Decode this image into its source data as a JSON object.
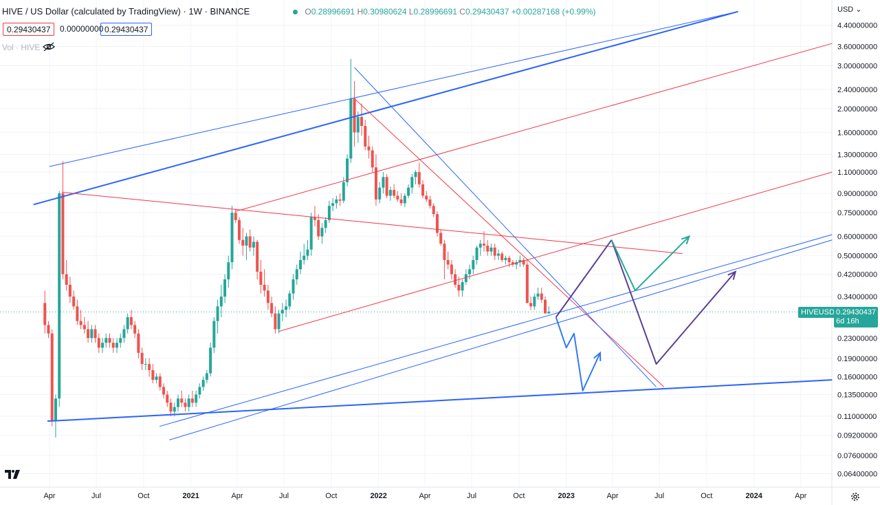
{
  "header": {
    "title": "HIVE / US Dollar (calculated by TradingView) · 1W · BINANCE",
    "ohlc": {
      "o_label": "O",
      "o": "0.28996691",
      "h_label": "H",
      "h": "0.30980624",
      "l_label": "L",
      "l": "0.28996691",
      "c_label": "C",
      "c": "0.29430437",
      "change": "+0.00287168 (+0.99%)"
    },
    "chips": [
      "0.29430437",
      "0.00000000",
      "0.29430437"
    ],
    "volume_label": "Vol · HIVE",
    "currency": "USD"
  },
  "last_price": {
    "symbol": "HIVEUSD",
    "price": "0.29430437",
    "countdown": "6d 16h"
  },
  "colors": {
    "up": "#26a69a",
    "down": "#ef5350",
    "blue_line": "#2962ff",
    "red_line": "#f23645",
    "purple": "#5b3e96",
    "teal": "#22ab94",
    "arrow_blue": "#3179f5"
  },
  "icons": [
    "eye-off-icon",
    "chevron-down-icon",
    "tradingview-logo-icon",
    "gear-icon"
  ],
  "chart_data": {
    "type": "candlestick",
    "title": "HIVE / US Dollar (calculated by TradingView) · 1W · BINANCE",
    "y_scale": "log",
    "ylim": [
      0.055,
      5.0
    ],
    "y_ticks": [
      "4.40000000",
      "3.60000000",
      "3.00000000",
      "2.40000000",
      "2.00000000",
      "1.60000000",
      "1.30000000",
      "1.10000000",
      "0.90000000",
      "0.75000000",
      "0.60000000",
      "0.50000000",
      "0.42000000",
      "0.34000000",
      "0.29430437",
      "0.23000000",
      "0.19000000",
      "0.16000000",
      "0.13500000",
      "0.11000000",
      "0.09200000",
      "0.07600000",
      "0.06400000"
    ],
    "x_ticks": [
      "Apr",
      "Jul",
      "Oct",
      "2021",
      "Apr",
      "Jul",
      "Oct",
      "2022",
      "Apr",
      "Jul",
      "Oct",
      "2023",
      "Apr",
      "Jul",
      "Oct",
      "2024",
      "Apr"
    ],
    "x_range": [
      "2020-03-15",
      "2024-05-15"
    ],
    "grid": true,
    "candles": [
      [
        "2020-03-23",
        0.32,
        0.36,
        0.24,
        0.26
      ],
      [
        "2020-03-30",
        0.26,
        0.27,
        0.23,
        0.24
      ],
      [
        "2020-04-06",
        0.24,
        0.25,
        0.1,
        0.105
      ],
      [
        "2020-04-13",
        0.105,
        0.135,
        0.09,
        0.13
      ],
      [
        "2020-04-20",
        0.13,
        0.92,
        0.12,
        0.9
      ],
      [
        "2020-04-27",
        0.9,
        1.22,
        0.4,
        0.42
      ],
      [
        "2020-05-04",
        0.42,
        0.48,
        0.36,
        0.38
      ],
      [
        "2020-05-11",
        0.38,
        0.41,
        0.32,
        0.34
      ],
      [
        "2020-05-18",
        0.34,
        0.36,
        0.3,
        0.31
      ],
      [
        "2020-05-25",
        0.31,
        0.33,
        0.26,
        0.27
      ],
      [
        "2020-06-01",
        0.27,
        0.3,
        0.25,
        0.26
      ],
      [
        "2020-06-08",
        0.26,
        0.28,
        0.24,
        0.25
      ],
      [
        "2020-06-15",
        0.25,
        0.27,
        0.22,
        0.23
      ],
      [
        "2020-06-22",
        0.23,
        0.26,
        0.22,
        0.25
      ],
      [
        "2020-06-29",
        0.25,
        0.26,
        0.22,
        0.23
      ],
      [
        "2020-07-06",
        0.23,
        0.24,
        0.2,
        0.21
      ],
      [
        "2020-07-13",
        0.21,
        0.23,
        0.2,
        0.22
      ],
      [
        "2020-07-20",
        0.22,
        0.24,
        0.21,
        0.23
      ],
      [
        "2020-07-27",
        0.23,
        0.24,
        0.21,
        0.22
      ],
      [
        "2020-08-03",
        0.22,
        0.23,
        0.2,
        0.21
      ],
      [
        "2020-08-10",
        0.21,
        0.23,
        0.2,
        0.22
      ],
      [
        "2020-08-17",
        0.22,
        0.24,
        0.21,
        0.23
      ],
      [
        "2020-08-24",
        0.23,
        0.26,
        0.22,
        0.25
      ],
      [
        "2020-08-31",
        0.25,
        0.29,
        0.24,
        0.28
      ],
      [
        "2020-09-07",
        0.28,
        0.3,
        0.25,
        0.26
      ],
      [
        "2020-09-14",
        0.26,
        0.27,
        0.23,
        0.24
      ],
      [
        "2020-09-21",
        0.24,
        0.25,
        0.19,
        0.2
      ],
      [
        "2020-09-28",
        0.2,
        0.21,
        0.17,
        0.18
      ],
      [
        "2020-10-05",
        0.18,
        0.19,
        0.17,
        0.18
      ],
      [
        "2020-10-12",
        0.18,
        0.19,
        0.16,
        0.17
      ],
      [
        "2020-10-19",
        0.17,
        0.18,
        0.15,
        0.155
      ],
      [
        "2020-10-26",
        0.155,
        0.165,
        0.15,
        0.16
      ],
      [
        "2020-11-02",
        0.16,
        0.165,
        0.14,
        0.145
      ],
      [
        "2020-11-09",
        0.145,
        0.15,
        0.13,
        0.135
      ],
      [
        "2020-11-16",
        0.135,
        0.14,
        0.12,
        0.125
      ],
      [
        "2020-11-23",
        0.125,
        0.13,
        0.11,
        0.115
      ],
      [
        "2020-11-30",
        0.115,
        0.125,
        0.11,
        0.12
      ],
      [
        "2020-12-07",
        0.12,
        0.135,
        0.115,
        0.13
      ],
      [
        "2020-12-14",
        0.13,
        0.14,
        0.12,
        0.125
      ],
      [
        "2020-12-21",
        0.125,
        0.13,
        0.115,
        0.12
      ],
      [
        "2020-12-28",
        0.12,
        0.135,
        0.115,
        0.13
      ],
      [
        "2021-01-04",
        0.13,
        0.14,
        0.12,
        0.125
      ],
      [
        "2021-01-11",
        0.125,
        0.14,
        0.12,
        0.135
      ],
      [
        "2021-01-18",
        0.135,
        0.15,
        0.13,
        0.145
      ],
      [
        "2021-01-25",
        0.145,
        0.16,
        0.14,
        0.155
      ],
      [
        "2021-02-01",
        0.155,
        0.17,
        0.15,
        0.165
      ],
      [
        "2021-02-08",
        0.165,
        0.22,
        0.16,
        0.21
      ],
      [
        "2021-02-15",
        0.21,
        0.28,
        0.2,
        0.27
      ],
      [
        "2021-02-22",
        0.27,
        0.33,
        0.24,
        0.31
      ],
      [
        "2021-03-01",
        0.31,
        0.38,
        0.28,
        0.34
      ],
      [
        "2021-03-08",
        0.34,
        0.42,
        0.32,
        0.4
      ],
      [
        "2021-03-15",
        0.4,
        0.5,
        0.37,
        0.47
      ],
      [
        "2021-03-22",
        0.47,
        0.8,
        0.44,
        0.75
      ],
      [
        "2021-03-29",
        0.75,
        0.78,
        0.68,
        0.7
      ],
      [
        "2021-04-05",
        0.7,
        0.72,
        0.56,
        0.58
      ],
      [
        "2021-04-12",
        0.58,
        0.65,
        0.5,
        0.55
      ],
      [
        "2021-04-19",
        0.55,
        0.62,
        0.48,
        0.6
      ],
      [
        "2021-04-26",
        0.6,
        0.64,
        0.52,
        0.54
      ],
      [
        "2021-05-03",
        0.54,
        0.6,
        0.5,
        0.57
      ],
      [
        "2021-05-10",
        0.57,
        0.58,
        0.4,
        0.43
      ],
      [
        "2021-05-17",
        0.43,
        0.48,
        0.35,
        0.38
      ],
      [
        "2021-05-24",
        0.38,
        0.44,
        0.34,
        0.36
      ],
      [
        "2021-05-31",
        0.36,
        0.38,
        0.3,
        0.32
      ],
      [
        "2021-06-07",
        0.32,
        0.34,
        0.28,
        0.29
      ],
      [
        "2021-06-14",
        0.29,
        0.31,
        0.24,
        0.25
      ],
      [
        "2021-06-21",
        0.25,
        0.3,
        0.24,
        0.29
      ],
      [
        "2021-06-28",
        0.29,
        0.32,
        0.27,
        0.3
      ],
      [
        "2021-07-05",
        0.3,
        0.33,
        0.28,
        0.31
      ],
      [
        "2021-07-12",
        0.31,
        0.36,
        0.3,
        0.35
      ],
      [
        "2021-07-19",
        0.35,
        0.42,
        0.33,
        0.4
      ],
      [
        "2021-07-26",
        0.4,
        0.46,
        0.38,
        0.44
      ],
      [
        "2021-08-02",
        0.44,
        0.52,
        0.42,
        0.48
      ],
      [
        "2021-08-09",
        0.48,
        0.56,
        0.46,
        0.5
      ],
      [
        "2021-08-16",
        0.5,
        0.58,
        0.48,
        0.53
      ],
      [
        "2021-08-23",
        0.53,
        0.75,
        0.5,
        0.72
      ],
      [
        "2021-08-30",
        0.72,
        0.8,
        0.66,
        0.7
      ],
      [
        "2021-09-06",
        0.7,
        0.74,
        0.58,
        0.6
      ],
      [
        "2021-09-13",
        0.6,
        0.68,
        0.56,
        0.65
      ],
      [
        "2021-09-20",
        0.65,
        0.72,
        0.62,
        0.7
      ],
      [
        "2021-09-27",
        0.7,
        0.84,
        0.68,
        0.8
      ],
      [
        "2021-10-04",
        0.8,
        0.86,
        0.76,
        0.82
      ],
      [
        "2021-10-11",
        0.82,
        0.88,
        0.78,
        0.85
      ],
      [
        "2021-10-18",
        0.85,
        0.9,
        0.8,
        0.84
      ],
      [
        "2021-10-25",
        0.84,
        1.05,
        0.82,
        1.0
      ],
      [
        "2021-11-01",
        1.0,
        1.3,
        0.96,
        1.25
      ],
      [
        "2021-11-08",
        1.25,
        3.2,
        1.2,
        2.2
      ],
      [
        "2021-11-15",
        2.2,
        2.6,
        1.4,
        1.6
      ],
      [
        "2021-11-22",
        1.6,
        1.95,
        1.45,
        1.85
      ],
      [
        "2021-11-29",
        1.85,
        2.1,
        1.55,
        1.7
      ],
      [
        "2021-12-06",
        1.7,
        1.8,
        1.35,
        1.4
      ],
      [
        "2021-12-13",
        1.4,
        1.55,
        1.25,
        1.35
      ],
      [
        "2021-12-20",
        1.35,
        1.4,
        1.1,
        1.15
      ],
      [
        "2021-12-27",
        1.15,
        1.3,
        0.8,
        0.85
      ],
      [
        "2022-01-03",
        0.85,
        1.0,
        0.82,
        0.95
      ],
      [
        "2022-01-10",
        0.95,
        1.1,
        0.9,
        1.05
      ],
      [
        "2022-01-17",
        1.05,
        1.08,
        0.86,
        0.88
      ],
      [
        "2022-01-24",
        0.88,
        0.96,
        0.84,
        0.93
      ],
      [
        "2022-01-31",
        0.93,
        0.98,
        0.86,
        0.88
      ],
      [
        "2022-02-07",
        0.88,
        0.92,
        0.83,
        0.85
      ],
      [
        "2022-02-14",
        0.85,
        0.9,
        0.8,
        0.82
      ],
      [
        "2022-02-21",
        0.82,
        0.9,
        0.79,
        0.88
      ],
      [
        "2022-02-28",
        0.88,
        0.98,
        0.86,
        0.95
      ],
      [
        "2022-03-07",
        0.95,
        1.08,
        0.9,
        1.05
      ],
      [
        "2022-03-14",
        1.05,
        1.12,
        0.98,
        1.1
      ],
      [
        "2022-03-21",
        1.1,
        1.2,
        0.95,
        0.98
      ],
      [
        "2022-03-28",
        0.98,
        1.02,
        0.86,
        0.88
      ],
      [
        "2022-04-04",
        0.88,
        0.92,
        0.83,
        0.85
      ],
      [
        "2022-04-11",
        0.85,
        0.88,
        0.78,
        0.8
      ],
      [
        "2022-04-18",
        0.8,
        0.82,
        0.72,
        0.74
      ],
      [
        "2022-04-25",
        0.74,
        0.76,
        0.6,
        0.62
      ],
      [
        "2022-05-02",
        0.62,
        0.64,
        0.55,
        0.56
      ],
      [
        "2022-05-09",
        0.56,
        0.58,
        0.4,
        0.48
      ],
      [
        "2022-05-16",
        0.48,
        0.52,
        0.44,
        0.46
      ],
      [
        "2022-05-23",
        0.46,
        0.48,
        0.4,
        0.42
      ],
      [
        "2022-05-30",
        0.42,
        0.44,
        0.37,
        0.38
      ],
      [
        "2022-06-06",
        0.38,
        0.41,
        0.34,
        0.36
      ],
      [
        "2022-06-13",
        0.36,
        0.4,
        0.34,
        0.39
      ],
      [
        "2022-06-20",
        0.39,
        0.44,
        0.38,
        0.42
      ],
      [
        "2022-06-27",
        0.42,
        0.46,
        0.4,
        0.44
      ],
      [
        "2022-07-04",
        0.44,
        0.5,
        0.42,
        0.48
      ],
      [
        "2022-07-11",
        0.48,
        0.55,
        0.46,
        0.54
      ],
      [
        "2022-07-18",
        0.54,
        0.58,
        0.5,
        0.56
      ],
      [
        "2022-07-25",
        0.56,
        0.63,
        0.52,
        0.55
      ],
      [
        "2022-08-01",
        0.55,
        0.58,
        0.5,
        0.52
      ],
      [
        "2022-08-08",
        0.52,
        0.56,
        0.5,
        0.54
      ],
      [
        "2022-08-15",
        0.54,
        0.56,
        0.48,
        0.5
      ],
      [
        "2022-08-22",
        0.5,
        0.53,
        0.48,
        0.51
      ],
      [
        "2022-08-29",
        0.51,
        0.52,
        0.47,
        0.48
      ],
      [
        "2022-09-05",
        0.48,
        0.5,
        0.46,
        0.49
      ],
      [
        "2022-09-12",
        0.49,
        0.5,
        0.45,
        0.47
      ],
      [
        "2022-09-19",
        0.47,
        0.48,
        0.45,
        0.46
      ],
      [
        "2022-09-26",
        0.46,
        0.48,
        0.44,
        0.47
      ],
      [
        "2022-10-03",
        0.47,
        0.5,
        0.45,
        0.48
      ],
      [
        "2022-10-10",
        0.48,
        0.49,
        0.45,
        0.46
      ],
      [
        "2022-10-17",
        0.46,
        0.48,
        0.34,
        0.32
      ],
      [
        "2022-10-24",
        0.32,
        0.34,
        0.3,
        0.31
      ],
      [
        "2022-10-31",
        0.31,
        0.35,
        0.3,
        0.34
      ],
      [
        "2022-11-07",
        0.34,
        0.37,
        0.33,
        0.35
      ],
      [
        "2022-11-14",
        0.35,
        0.37,
        0.32,
        0.33
      ],
      [
        "2022-11-21",
        0.33,
        0.34,
        0.29,
        0.29
      ],
      [
        "2022-11-28",
        0.29,
        0.31,
        0.29,
        0.2943
      ]
    ],
    "drawings": [
      {
        "name": "blue-upper-channel-main",
        "color": "blue",
        "points": [
          [
            "2020-03-01",
            0.81
          ],
          [
            "2023-12-01",
            5.0
          ]
        ]
      },
      {
        "name": "blue-upper-channel-thin",
        "color": "blue",
        "points": [
          [
            "2020-04-01",
            1.16
          ],
          [
            "2023-12-01",
            5.0
          ]
        ]
      },
      {
        "name": "blue-bottom-support",
        "color": "blue",
        "points": [
          [
            "2020-03-28",
            0.105
          ],
          [
            "2024-06-01",
            0.155
          ]
        ]
      },
      {
        "name": "red-resistance-descending",
        "color": "red",
        "points": [
          [
            "2020-04-25",
            0.91
          ],
          [
            "2023-08-15",
            0.51
          ]
        ]
      },
      {
        "name": "red-channel-upper",
        "color": "red",
        "points": [
          [
            "2021-03-29",
            0.76
          ],
          [
            "2024-06-01",
            3.7
          ]
        ]
      },
      {
        "name": "red-channel-lower",
        "color": "red",
        "points": [
          [
            "2021-06-21",
            0.245
          ],
          [
            "2024-06-01",
            1.1
          ]
        ]
      },
      {
        "name": "red-downtrend",
        "color": "red",
        "points": [
          [
            "2021-11-15",
            2.2
          ],
          [
            "2023-07-10",
            0.145
          ]
        ]
      },
      {
        "name": "blue-downtrend",
        "color": "blue",
        "points": [
          [
            "2021-11-15",
            2.95
          ],
          [
            "2023-06-25",
            0.145
          ]
        ]
      },
      {
        "name": "blue-rising-support-1",
        "color": "blue",
        "points": [
          [
            "2020-11-01",
            0.1
          ],
          [
            "2024-06-01",
            0.61
          ]
        ]
      },
      {
        "name": "blue-rising-support-2",
        "color": "blue",
        "points": [
          [
            "2020-11-20",
            0.088
          ],
          [
            "2024-06-01",
            0.58
          ]
        ]
      }
    ],
    "projections": [
      {
        "name": "blue-bear-path",
        "color": "blue",
        "points": [
          [
            "2022-12-12",
            0.28
          ],
          [
            "2023-01-01",
            0.21
          ],
          [
            "2023-01-16",
            0.24
          ],
          [
            "2023-02-02",
            0.14
          ],
          [
            "2023-03-08",
            0.2
          ]
        ]
      },
      {
        "name": "purple-up-leg",
        "color": "purple",
        "points": [
          [
            "2022-12-12",
            0.28
          ],
          [
            "2023-03-30",
            0.58
          ]
        ]
      },
      {
        "name": "purple-zigzag",
        "color": "purple",
        "points": [
          [
            "2023-03-30",
            0.58
          ],
          [
            "2023-06-25",
            0.18
          ],
          [
            "2023-11-26",
            0.43
          ]
        ]
      },
      {
        "name": "teal-path",
        "color": "teal",
        "points": [
          [
            "2023-03-30",
            0.58
          ],
          [
            "2023-05-15",
            0.36
          ],
          [
            "2023-08-28",
            0.6
          ]
        ]
      }
    ]
  }
}
